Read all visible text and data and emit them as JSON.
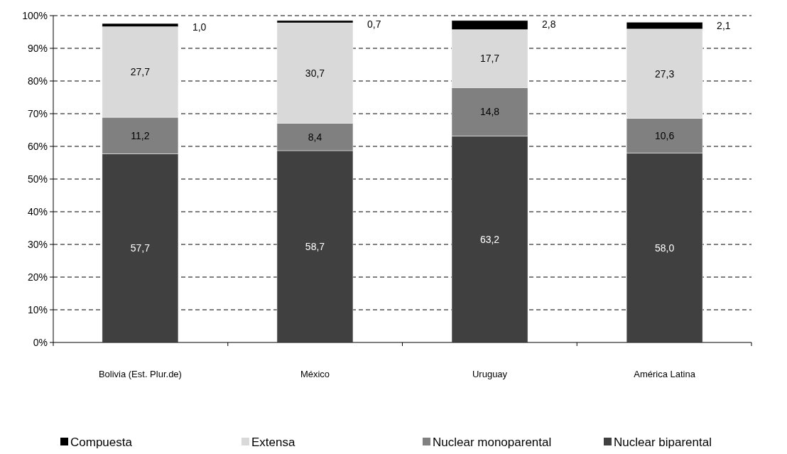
{
  "chart_data": {
    "type": "bar",
    "stacked": true,
    "categories": [
      "Bolivia (Est. Plur.de)",
      "México",
      "Uruguay",
      "América Latina"
    ],
    "series": [
      {
        "name": "Nuclear biparental",
        "color": "#404040",
        "values": [
          57.7,
          58.7,
          63.2,
          58.0
        ]
      },
      {
        "name": "Nuclear monoparental",
        "color": "#808080",
        "values": [
          11.2,
          8.4,
          14.8,
          10.6
        ]
      },
      {
        "name": "Extensa",
        "color": "#d9d9d9",
        "values": [
          27.7,
          30.7,
          17.7,
          27.3
        ]
      },
      {
        "name": "Compuesta",
        "color": "#000000",
        "values": [
          1.0,
          0.7,
          2.8,
          2.1
        ]
      }
    ],
    "value_labels": [
      [
        "57,7",
        "58,7",
        "63,2",
        "58,0"
      ],
      [
        "11,2",
        "8,4",
        "14,8",
        "10,6"
      ],
      [
        "27,7",
        "30,7",
        "17,7",
        "27,3"
      ],
      [
        "1,0",
        "0,7",
        "2,8",
        "2,1"
      ]
    ],
    "ylim": [
      0,
      100
    ],
    "yticks": [
      {
        "value": 0,
        "label": "0%"
      },
      {
        "value": 10,
        "label": "10%"
      },
      {
        "value": 20,
        "label": "20%"
      },
      {
        "value": 30,
        "label": "30%"
      },
      {
        "value": 40,
        "label": "40%"
      },
      {
        "value": 50,
        "label": "50%"
      },
      {
        "value": 60,
        "label": "60%"
      },
      {
        "value": 70,
        "label": "70%"
      },
      {
        "value": 80,
        "label": "80%"
      },
      {
        "value": 90,
        "label": "90%"
      },
      {
        "value": 100,
        "label": "100%"
      }
    ],
    "grid": "y",
    "legend": "bottom"
  }
}
